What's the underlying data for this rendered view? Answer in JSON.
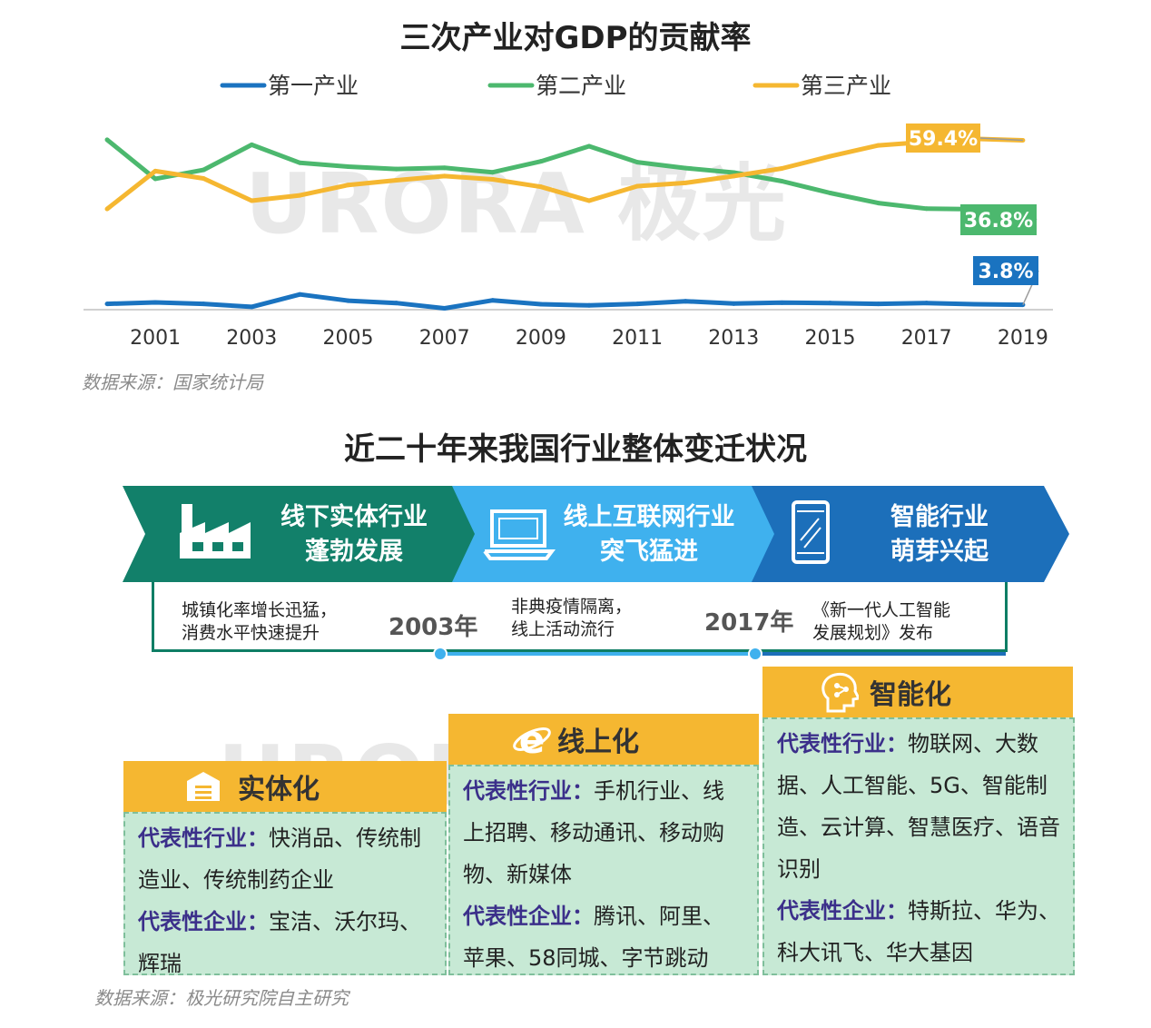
{
  "chart_title": "三次产业对GDP的贡献率",
  "chart_data": {
    "type": "line",
    "title": "三次产业对GDP的贡献率",
    "x": [
      2000,
      2001,
      2002,
      2003,
      2004,
      2005,
      2006,
      2007,
      2008,
      2009,
      2010,
      2011,
      2012,
      2013,
      2014,
      2015,
      2016,
      2017,
      2018,
      2019
    ],
    "x_ticks": [
      "2001",
      "2003",
      "2005",
      "2007",
      "2009",
      "2011",
      "2013",
      "2015",
      "2017",
      "2019"
    ],
    "series": [
      {
        "name": "第一产业",
        "color": "#1a73c0",
        "values": [
          4.1,
          4.6,
          4.1,
          3.1,
          7.3,
          5.2,
          4.4,
          2.6,
          5.3,
          4.0,
          3.6,
          4.1,
          5.0,
          4.2,
          4.5,
          4.4,
          4.1,
          4.4,
          4.0,
          3.8
        ]
      },
      {
        "name": "第二产业",
        "color": "#4cb86e",
        "values": [
          59.6,
          46.4,
          49.4,
          57.9,
          51.8,
          50.5,
          49.7,
          50.1,
          48.6,
          52.3,
          57.4,
          52.0,
          50.0,
          48.5,
          45.6,
          41.6,
          38.2,
          36.3,
          36.1,
          36.8
        ]
      },
      {
        "name": "第三产业",
        "color": "#f5b731",
        "values": [
          36.2,
          49.0,
          46.5,
          39.0,
          40.8,
          44.3,
          45.9,
          47.3,
          46.2,
          43.7,
          39.0,
          43.9,
          45.0,
          47.3,
          49.9,
          54.0,
          57.7,
          58.9,
          59.9,
          59.4
        ]
      }
    ],
    "end_labels": [
      "3.8%",
      "36.8%",
      "59.4%"
    ],
    "ylim": [
      0,
      70
    ],
    "grid": false,
    "legend": "top"
  },
  "chart_source": "数据来源：国家统计局",
  "watermark": "URORA 极光",
  "section_title": "近二十年来我国行业整体变迁状况",
  "stages": [
    {
      "line1": "线下实体行业",
      "line2": "蓬勃发展",
      "icon": "factory-icon",
      "color": "#12806a"
    },
    {
      "line1": "线上互联网行业",
      "line2": "突飞猛进",
      "icon": "laptop-icon",
      "color": "#3fb1ee"
    },
    {
      "line1": "智能行业",
      "line2": "萌芽兴起",
      "icon": "phone-icon",
      "color": "#1c6fba"
    }
  ],
  "timeline": {
    "notes": [
      {
        "line1": "城镇化率增长迅猛，",
        "line2": "消费水平快速提升"
      },
      {
        "line1": "非典疫情隔离，",
        "line2": "线上活动流行"
      },
      {
        "line1": "《新一代人工智能",
        "line2": "发展规划》发布"
      }
    ],
    "years": [
      "2003年",
      "2017年"
    ]
  },
  "cards": [
    {
      "title": "实体化",
      "icon": "store-icon",
      "industry_label": "代表性行业：",
      "industry": "快消品、传统制造业、传统制药企业",
      "company_label": "代表性企业：",
      "company": "宝洁、沃尔玛、辉瑞"
    },
    {
      "title": "线上化",
      "icon": "internet-explorer-icon",
      "industry_label": "代表性行业：",
      "industry": "手机行业、线上招聘、移动通讯、移动购物、新媒体",
      "company_label": "代表性企业：",
      "company": "腾讯、阿里、苹果、58同城、字节跳动"
    },
    {
      "title": "智能化",
      "icon": "ai-head-icon",
      "industry_label": "代表性行业：",
      "industry": "物联网、大数据、人工智能、5G、智能制造、云计算、智慧医疗、语音识别",
      "company_label": "代表性企业：",
      "company": "特斯拉、华为、科大讯飞、华大基因"
    }
  ],
  "bottom_source": "数据来源：极光研究院自主研究"
}
